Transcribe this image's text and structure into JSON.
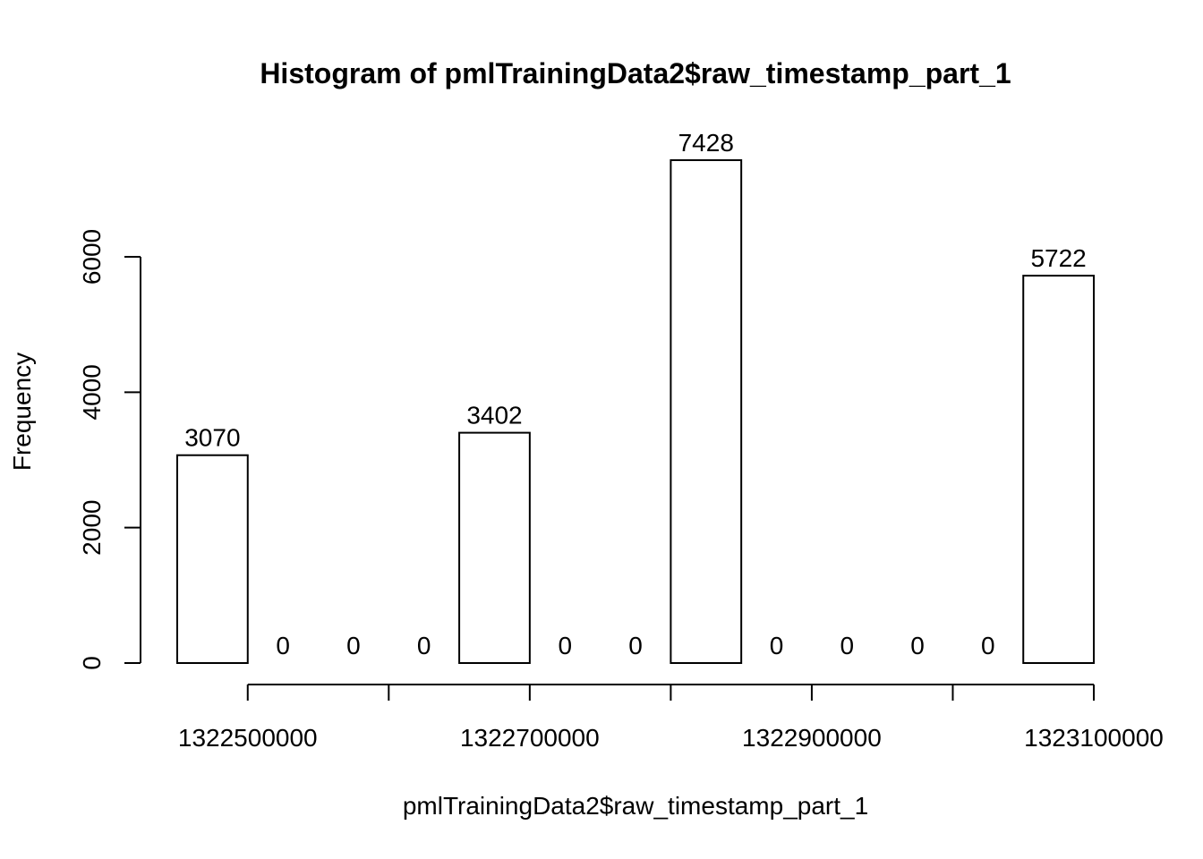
{
  "chart_data": {
    "type": "bar",
    "title": "Histogram of pmlTrainingData2$raw_timestamp_part_1",
    "xlabel": "pmlTrainingData2$raw_timestamp_part_1",
    "ylabel": "Frequency",
    "bin_edges": [
      1322450000,
      1322500000,
      1322550000,
      1322600000,
      1322650000,
      1322700000,
      1322750000,
      1322800000,
      1322850000,
      1322900000,
      1322950000,
      1323000000,
      1323050000,
      1323100000
    ],
    "values": [
      3070,
      0,
      0,
      0,
      3402,
      0,
      0,
      7428,
      0,
      0,
      0,
      0,
      5722
    ],
    "data_labels": [
      "3070",
      "0",
      "0",
      "0",
      "3402",
      "0",
      "0",
      "7428",
      "0",
      "0",
      "0",
      "0",
      "5722"
    ],
    "y_ticks": [
      0,
      2000,
      4000,
      6000
    ],
    "y_tick_labels": [
      "0",
      "2000",
      "4000",
      "6000"
    ],
    "x_ticks": [
      1322500000,
      1322600000,
      1322700000,
      1322800000,
      1322900000,
      1323000000,
      1323100000
    ],
    "x_tick_labels": [
      "1322500000",
      "",
      "1322700000",
      "",
      "1322900000",
      "",
      "1323100000"
    ],
    "xlim": [
      1322450000,
      1323100000
    ],
    "ylim": [
      0,
      7428
    ],
    "grid": false,
    "colors": {
      "bar_fill": "#ffffff",
      "bar_stroke": "#000000",
      "text": "#000000"
    }
  }
}
